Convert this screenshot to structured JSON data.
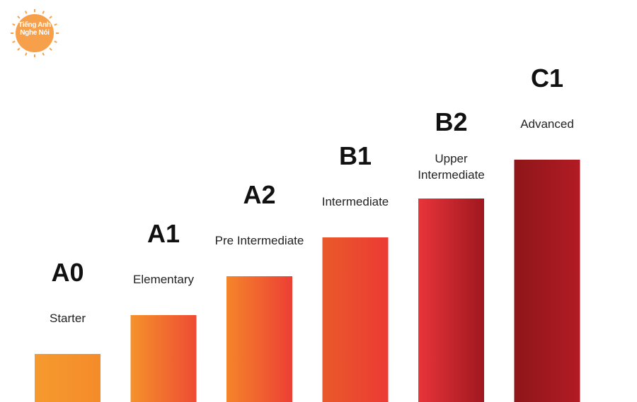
{
  "brand": {
    "logo_line1": "Tiếng Anh",
    "logo_line2": "Nghe Nói",
    "logo_color": "#F7A04B"
  },
  "chart_data": {
    "type": "bar",
    "title": "",
    "xlabel": "",
    "ylabel": "",
    "categories": [
      "A0",
      "A1",
      "A2",
      "B1",
      "B2",
      "C1"
    ],
    "sublabels": [
      "Starter",
      "Elementary",
      "Pre Intermediate",
      "Intermediate",
      "Upper Intermediate",
      "Advanced"
    ],
    "values": [
      1,
      2,
      3,
      4,
      5,
      6
    ],
    "ylim": [
      0,
      6
    ],
    "grid": false,
    "colors": [
      [
        "#F59A2E",
        "#F58B2A"
      ],
      [
        "#F5922B",
        "#EE4B33"
      ],
      [
        "#F5852A",
        "#EC3F35"
      ],
      [
        "#E95A2A",
        "#EC3A34"
      ],
      [
        "#E8353A",
        "#A0171F"
      ],
      [
        "#8E1619",
        "#B21B24"
      ]
    ]
  }
}
